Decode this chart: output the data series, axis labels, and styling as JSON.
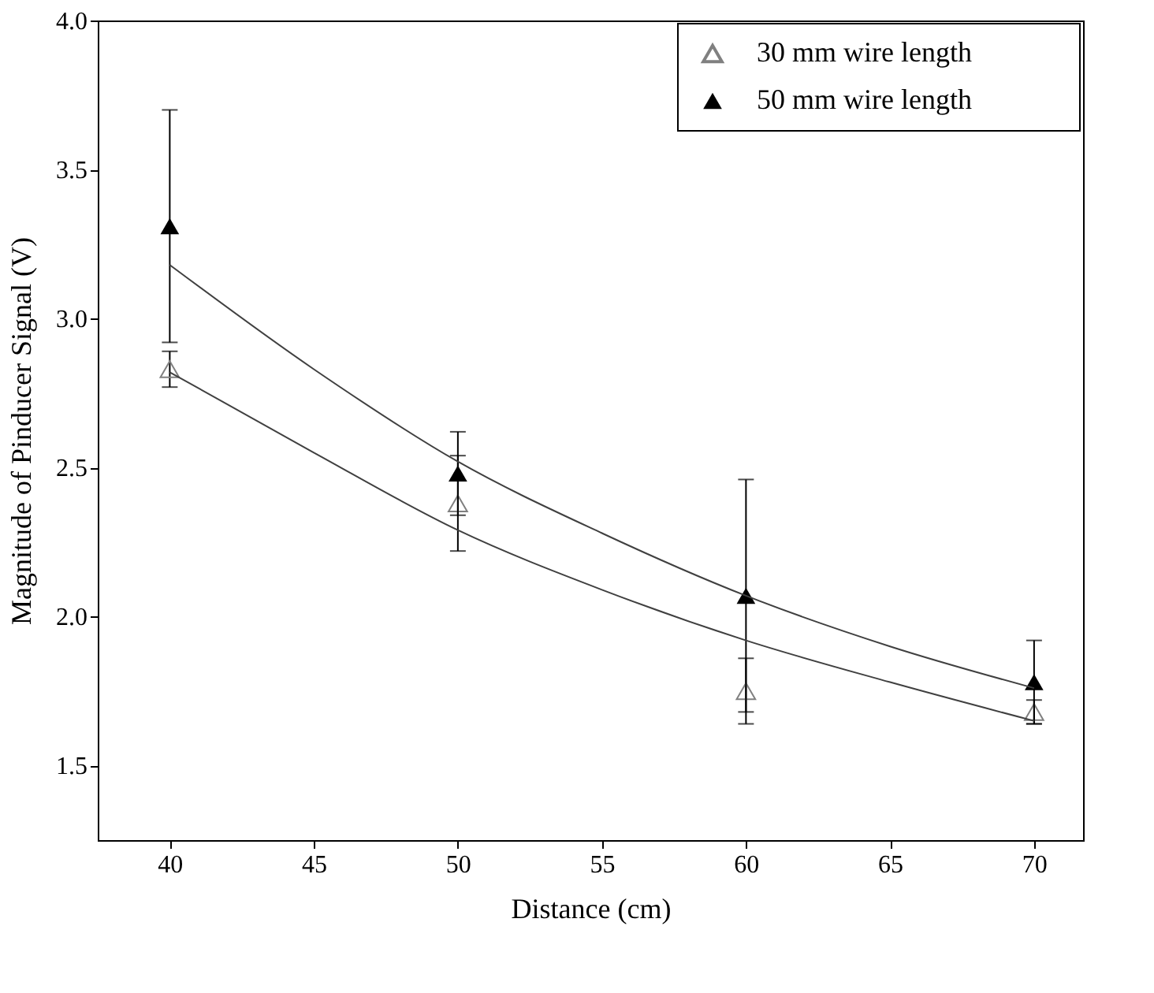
{
  "chart_data": {
    "type": "scatter",
    "xlabel": "Distance (cm)",
    "ylabel": "Magnitude of Pinducer Signal (V)",
    "xlim": [
      37.5,
      71.7
    ],
    "ylim": [
      1.25,
      4.0
    ],
    "xticks": [
      40,
      45,
      50,
      55,
      60,
      65,
      70
    ],
    "yticks": [
      1.5,
      {
        "value": 2,
        "label": "2.0"
      },
      2.5,
      {
        "value": 3,
        "label": "3.0"
      },
      3.5,
      {
        "value": 4,
        "label": "4.0"
      }
    ],
    "x": [
      40,
      50,
      60,
      70
    ],
    "grid": false,
    "legend": "top right",
    "series": [
      {
        "name": "30 mm wire length",
        "marker": "triangle",
        "color": "#808080",
        "values": [
          2.83,
          2.38,
          1.75,
          1.68
        ],
        "errors": [
          [
            2.77,
            2.89
          ],
          [
            2.22,
            2.54
          ],
          [
            1.64,
            1.86
          ],
          [
            1.64,
            1.72
          ]
        ]
      },
      {
        "name": "50 mm wire length",
        "marker": "triangle",
        "color": "#000000",
        "values": [
          3.31,
          2.48,
          2.07,
          1.78
        ],
        "errors": [
          [
            2.92,
            3.7
          ],
          [
            2.34,
            2.62
          ],
          [
            1.68,
            2.46
          ],
          [
            1.64,
            1.92
          ]
        ]
      },
      {
        "type": "line",
        "marker": "none",
        "color": "#404040",
        "x": [
          40,
          45,
          50,
          55,
          60,
          65,
          70
        ],
        "values": [
          2.82,
          2.55,
          2.29,
          2.09,
          1.92,
          1.78,
          1.65
        ]
      },
      {
        "type": "line",
        "marker": "none",
        "color": "#404040",
        "x": [
          40,
          45,
          50,
          55,
          60,
          65,
          70
        ],
        "values": [
          3.18,
          2.83,
          2.52,
          2.28,
          2.07,
          1.9,
          1.76
        ]
      }
    ]
  }
}
